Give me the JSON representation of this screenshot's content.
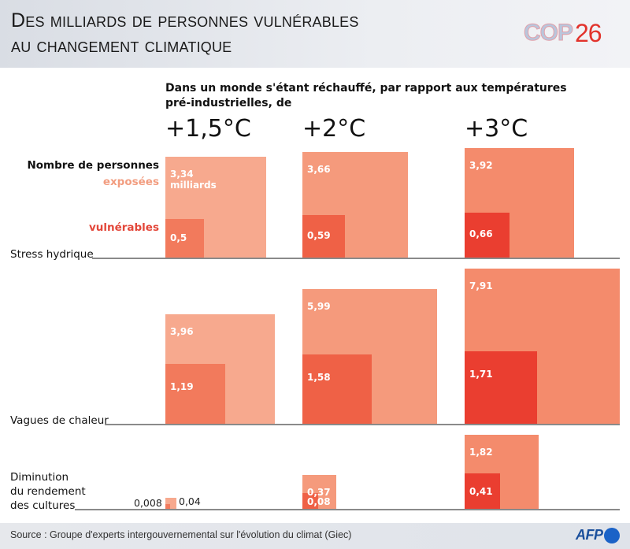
{
  "header": {
    "title_line1": "Des milliards de personnes vulnérables",
    "title_line2": "au changement climatique",
    "logo_cop": "COP",
    "logo_number": "26"
  },
  "colors": {
    "exposed_1_5": "#f7a98e",
    "exposed_2": "#f59a7c",
    "exposed_3": "#f48b6c",
    "vulnerable_1_5": "#f27a5c",
    "vulnerable_2": "#ef6146",
    "vulnerable_3": "#ea3e30",
    "legend_exposed": "#f29d80",
    "legend_vulnerable": "#e3473a"
  },
  "chart_data": {
    "type": "area-squares",
    "title": "Des milliards de personnes vulnérables au changement climatique",
    "subtitle": "Dans un monde s'étant réchauffé, par rapport aux températures pré-industrielles, de",
    "unit": "milliards",
    "scenarios": [
      "+1,5°C",
      "+2°C",
      "+3°C"
    ],
    "legend": {
      "title": "Nombre de personnes",
      "exposed": "exposées",
      "vulnerable": "vulnérables"
    },
    "categories": [
      {
        "label": "Stress hydrique",
        "exposed": [
          3.34,
          3.66,
          3.92
        ],
        "vulnerable": [
          0.5,
          0.59,
          0.66
        ],
        "exposed_labels": [
          "3,34",
          "3,66",
          "3,92"
        ],
        "vulnerable_labels": [
          "0,5",
          "0,59",
          "0,66"
        ]
      },
      {
        "label": "Vagues de chaleur",
        "exposed": [
          3.96,
          5.99,
          7.91
        ],
        "vulnerable": [
          1.19,
          1.58,
          1.71
        ],
        "exposed_labels": [
          "3,96",
          "5,99",
          "7,91"
        ],
        "vulnerable_labels": [
          "1,19",
          "1,58",
          "1,71"
        ]
      },
      {
        "label": "Diminution du rendement des cultures",
        "label_lines": [
          "Diminution",
          "du rendement",
          "des cultures"
        ],
        "exposed": [
          0.04,
          0.37,
          1.82
        ],
        "vulnerable": [
          0.008,
          0.08,
          0.41
        ],
        "exposed_labels": [
          "0,04",
          "0,37",
          "1,82"
        ],
        "vulnerable_labels": [
          "0,008",
          "0,08",
          "0,41"
        ]
      }
    ],
    "first_exposed_unit_label": "milliards"
  },
  "footer": {
    "source": "Source : Groupe d'experts intergouvernemental sur l'évolution du climat (Giec)",
    "agency": "AFP"
  }
}
